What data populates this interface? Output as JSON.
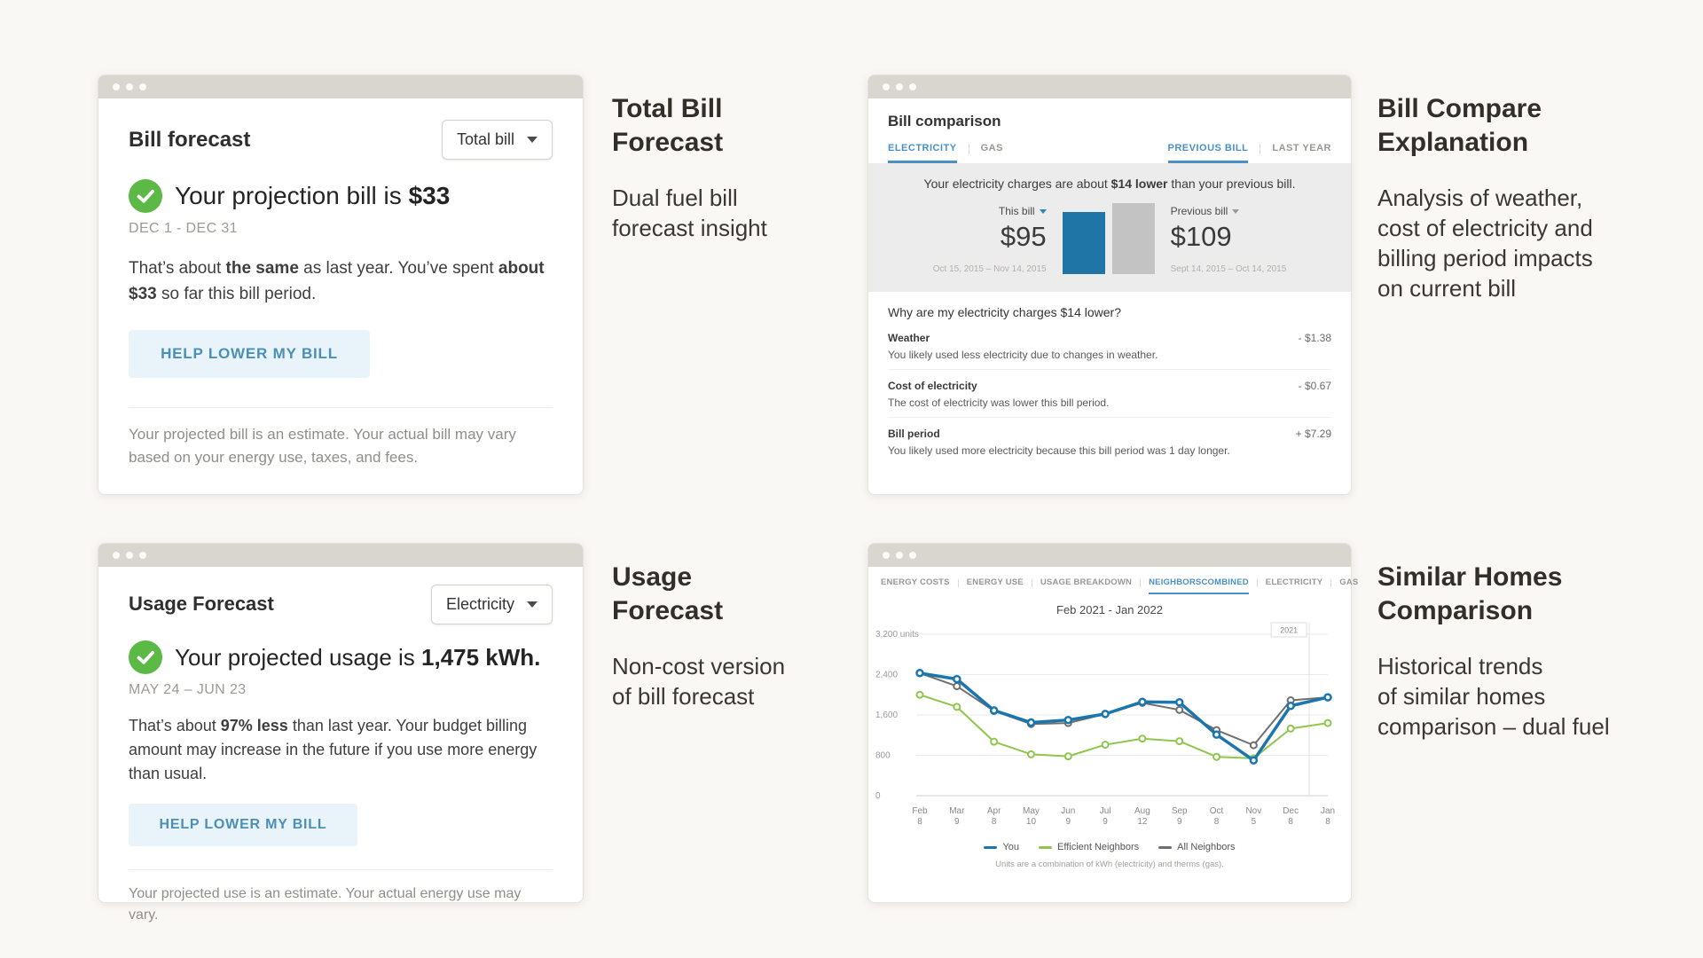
{
  "annotations": [
    {
      "title_lines": [
        "Total Bill",
        "Forecast"
      ],
      "desc_lines": [
        "Dual fuel bill",
        "forecast insight"
      ]
    },
    {
      "title_lines": [
        "Bill Compare",
        "Explanation"
      ],
      "desc_lines": [
        "Analysis of weather,",
        "cost of electricity and",
        "billing period impacts",
        "on current bill"
      ]
    },
    {
      "title_lines": [
        "Usage",
        "Forecast"
      ],
      "desc_lines": [
        "Non-cost version",
        "of bill forecast"
      ]
    },
    {
      "title_lines": [
        "Similar Homes",
        "Comparison"
      ],
      "desc_lines": [
        "Historical trends",
        "of similar homes",
        "comparison – dual fuel"
      ]
    }
  ],
  "bill_forecast": {
    "title": "Bill forecast",
    "dropdown_value": "Total bill",
    "headline_prefix": "Your projection bill is ",
    "headline_value": "$33",
    "date_range": "DEC 1 - DEC 31",
    "body": {
      "p1": "That’s about ",
      "b1": "the same",
      "p2": " as last year. You’ve spent ",
      "b2": "about $33",
      "p3": " so far this bill period."
    },
    "button": "HELP LOWER MY BILL",
    "footnote": "Your projected bill is an estimate. Your actual bill may vary based on your energy use, taxes, and fees."
  },
  "usage_forecast": {
    "title": "Usage Forecast",
    "dropdown_value": "Electricity",
    "headline_prefix": "Your projected usage is ",
    "headline_value": "1,475 kWh.",
    "date_range": "MAY 24 – JUN 23",
    "body": {
      "p1": "That’s about ",
      "b1": "97% less",
      "p2": " than last year. Your budget billing amount may increase in the future if you use more energy than usual."
    },
    "button": "HELP LOWER MY BILL",
    "footnote": "Your projected use is an estimate. Your actual energy use may vary."
  },
  "bill_comparison": {
    "title": "Bill comparison",
    "tabs_left": [
      "ELECTRICITY",
      "GAS"
    ],
    "tabs_right": [
      "PREVIOUS BILL",
      "LAST YEAR"
    ],
    "message": {
      "p1": "Your electricity charges are about ",
      "b": "$14 lower",
      "p2": " than your previous bill."
    },
    "why": {
      "question": "Why are my electricity charges $14 lower?",
      "rows": [
        {
          "label": "Weather",
          "value": "- $1.38",
          "desc": "You likely used less electricity due to changes in weather."
        },
        {
          "label": "Cost of electricity",
          "value": "- $0.67",
          "desc": "The cost of electricity was lower this bill period."
        },
        {
          "label": "Bill period",
          "value": "+ $7.29",
          "desc": "You likely used more electricity because this bill period was 1 day longer."
        }
      ]
    }
  },
  "neighbors": {
    "tabs_left": [
      "ENERGY COSTS",
      "ENERGY USE",
      "USAGE BREAKDOWN",
      "NEIGHBORS"
    ],
    "tabs_right": [
      "COMBINED",
      "ELECTRICITY",
      "GAS"
    ]
  },
  "chart_data": [
    {
      "type": "bar",
      "title": "Bill comparison",
      "categories": [
        "This bill",
        "Previous bill"
      ],
      "values": [
        95,
        109
      ],
      "value_labels": [
        "$95",
        "$109"
      ],
      "date_ranges": [
        "Oct 15, 2015 – Nov 14, 2015",
        "Sept 14, 2015 – Oct 14, 2015"
      ],
      "colors": [
        "#1e75a6",
        "#c3c3c3"
      ]
    },
    {
      "type": "line",
      "title": "Feb 2021 - Jan 2022",
      "x_labels": [
        [
          "Feb",
          "8"
        ],
        [
          "Mar",
          "9"
        ],
        [
          "Apr",
          "8"
        ],
        [
          "May",
          "10"
        ],
        [
          "Jun",
          "9"
        ],
        [
          "Jul",
          "9"
        ],
        [
          "Aug",
          "12"
        ],
        [
          "Sep",
          "9"
        ],
        [
          "Oct",
          "8"
        ],
        [
          "Nov",
          "5"
        ],
        [
          "Dec",
          "8"
        ],
        [
          "Jan",
          "8"
        ]
      ],
      "ylim": [
        0,
        3200
      ],
      "yticks": [
        0,
        800,
        1600,
        2400,
        3200
      ],
      "ytick_labels": [
        "0",
        "800",
        "1,600",
        "2,400",
        "3,200 units"
      ],
      "year_label": "2021",
      "grid": true,
      "legend_position": "bottom",
      "series": [
        {
          "name": "You",
          "color": "#1b76ad",
          "values": [
            2430,
            2310,
            1690,
            1450,
            1500,
            1620,
            1860,
            1850,
            1210,
            700,
            1780,
            1950
          ]
        },
        {
          "name": "Efficient Neighbors",
          "color": "#8ec64e",
          "values": [
            2000,
            1760,
            1070,
            820,
            780,
            1010,
            1130,
            1080,
            770,
            740,
            1330,
            1440
          ]
        },
        {
          "name": "All Neighbors",
          "color": "#6f6f6f",
          "values": [
            2430,
            2170,
            1680,
            1420,
            1440,
            1620,
            1840,
            1700,
            1300,
            1000,
            1890,
            1950
          ]
        }
      ],
      "footnote": "Units are a combination of kWh (electricity) and therms (gas)."
    }
  ]
}
